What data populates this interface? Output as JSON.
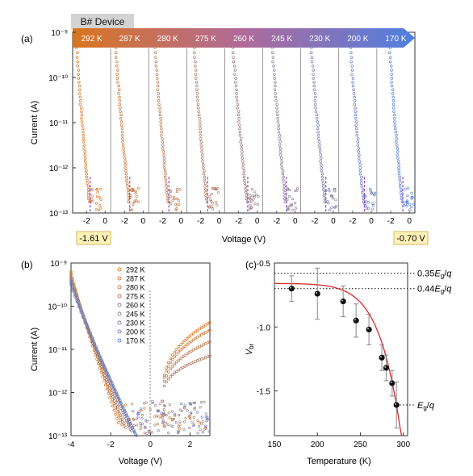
{
  "device_label": "B# Device",
  "colors": {
    "warm": "#d9751f",
    "cool": "#5b7fd6",
    "guide": "#8a3fd0",
    "fit": "#d42a2a",
    "arrow_start": "#d9751f",
    "arrow_end": "#4f7fe0",
    "highlight": "#fff2b8"
  },
  "chart_data": [
    {
      "panel": "(a)",
      "type": "scatter",
      "ylabel": "Current (A)",
      "xlabel": "Voltage (V)",
      "yscale": "log",
      "ylim": [
        1e-13,
        1e-09
      ],
      "y_ticks": [
        "10⁻¹³",
        "10⁻¹²",
        "10⁻¹¹",
        "10⁻¹⁰",
        "10⁻⁹"
      ],
      "x_tick_labels": [
        "-2",
        "0"
      ],
      "series": [
        {
          "name": "292 K",
          "vbr": -1.61
        },
        {
          "name": "287 K",
          "vbr": -1.44
        },
        {
          "name": "280 K",
          "vbr": -1.32
        },
        {
          "name": "275 K",
          "vbr": -1.24
        },
        {
          "name": "260 K",
          "vbr": -1.02
        },
        {
          "name": "245 K",
          "vbr": -0.95
        },
        {
          "name": "230 K",
          "vbr": -0.8
        },
        {
          "name": "200 K",
          "vbr": -0.74
        },
        {
          "name": "170 K",
          "vbr": -0.7
        }
      ],
      "annotations": [
        "-1.61 V",
        "-0.70 V"
      ]
    },
    {
      "panel": "(b)",
      "type": "scatter",
      "ylabel": "Current (A)",
      "xlabel": "Voltage (V)",
      "yscale": "log",
      "xlim": [
        -4,
        3
      ],
      "ylim": [
        1e-13,
        1e-09
      ],
      "x_ticks": [
        -4,
        -2,
        0,
        2
      ],
      "y_ticks": [
        "10⁻¹³",
        "10⁻¹²",
        "10⁻¹¹",
        "10⁻¹⁰",
        "10⁻⁹"
      ],
      "legend": [
        "292 K",
        "287 K",
        "280 K",
        "275 K",
        "260 K",
        "245 K",
        "230 K",
        "200 K",
        "170 K"
      ],
      "legend_position": "top-center",
      "series": [
        {
          "name": "292 K",
          "i_at_3v": 4.2e-11
        },
        {
          "name": "287 K",
          "i_at_3v": 2.8e-11
        },
        {
          "name": "280 K",
          "i_at_3v": 1.5e-11
        },
        {
          "name": "275 K",
          "i_at_3v": 7e-12
        },
        {
          "name": "260 K",
          "i_at_3v": 3e-13
        },
        {
          "name": "245 K",
          "i_at_3v": 2e-13
        },
        {
          "name": "230 K",
          "i_at_3v": 1.5e-13
        },
        {
          "name": "200 K",
          "i_at_3v": 1.2e-13
        },
        {
          "name": "170 K",
          "i_at_3v": 1e-13
        }
      ]
    },
    {
      "panel": "(c)",
      "type": "scatter",
      "xlabel": "Temperature (K)",
      "ylabel": "V_br",
      "xlim": [
        150,
        305
      ],
      "ylim": [
        -1.85,
        -0.5
      ],
      "x_ticks": [
        150,
        200,
        250,
        300
      ],
      "y_ticks": [
        -0.5,
        -1.0,
        -1.5
      ],
      "points": [
        {
          "x": 170,
          "y": -0.7,
          "err": 0.1
        },
        {
          "x": 200,
          "y": -0.74,
          "err": 0.2
        },
        {
          "x": 230,
          "y": -0.8,
          "err": 0.12
        },
        {
          "x": 245,
          "y": -0.95,
          "err": 0.13
        },
        {
          "x": 260,
          "y": -1.02,
          "err": 0.12
        },
        {
          "x": 275,
          "y": -1.24,
          "err": 0.1
        },
        {
          "x": 280,
          "y": -1.32,
          "err": 0.1
        },
        {
          "x": 287,
          "y": -1.44,
          "err": 0.1
        },
        {
          "x": 292,
          "y": -1.61,
          "err": 0.18
        }
      ],
      "reference_lines": [
        {
          "y": -0.58,
          "label": "0.35E_g/q"
        },
        {
          "y": -0.7,
          "label": "0.44E_g/q"
        },
        {
          "y": -1.61,
          "label": "E_g/q"
        }
      ]
    }
  ]
}
